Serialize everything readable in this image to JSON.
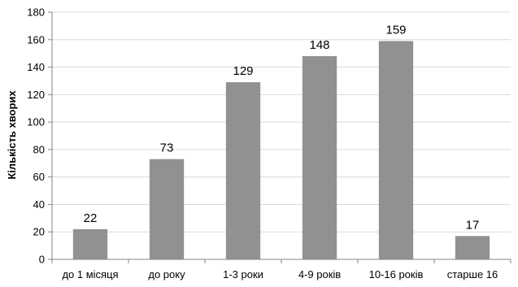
{
  "chart_data": {
    "type": "bar",
    "title": "",
    "xlabel": "",
    "ylabel": "Кількість хворих",
    "categories": [
      "до 1 місяця",
      "до року",
      "1-3 роки",
      "4-9 років",
      "10-16 років",
      "старше 16"
    ],
    "values": [
      22,
      73,
      129,
      148,
      159,
      17
    ],
    "ylim": [
      0,
      180
    ],
    "ytick_step": 20,
    "grid": true,
    "legend": "none",
    "show_data_labels": true,
    "bar_color": "#919191"
  }
}
